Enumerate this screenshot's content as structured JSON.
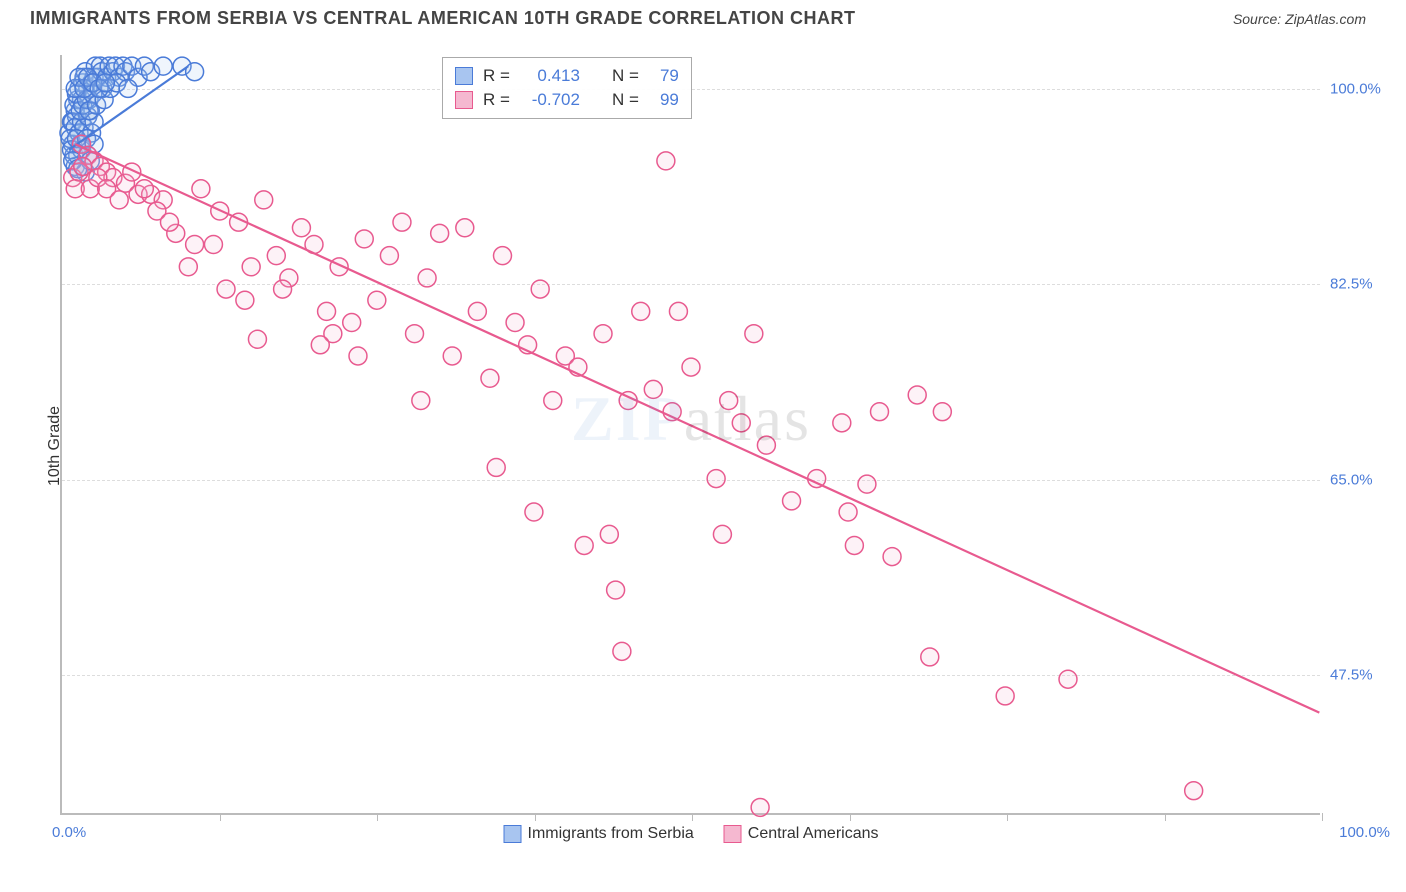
{
  "title": "IMMIGRANTS FROM SERBIA VS CENTRAL AMERICAN 10TH GRADE CORRELATION CHART",
  "source": "Source: ZipAtlas.com",
  "y_axis_label": "10th Grade",
  "watermark": "ZIPatlas",
  "chart": {
    "type": "scatter",
    "x_range": [
      0,
      100
    ],
    "y_range": [
      35,
      103
    ],
    "y_ticks": [
      47.5,
      65.0,
      82.5,
      100.0
    ],
    "y_tick_labels": [
      "47.5%",
      "65.0%",
      "82.5%",
      "100.0%"
    ],
    "x_min_label": "0.0%",
    "x_max_label": "100.0%",
    "x_tick_positions": [
      12.5,
      25,
      37.5,
      50,
      62.5,
      75,
      87.5,
      100
    ],
    "background_color": "#ffffff",
    "grid_color": "#dddddd",
    "axis_color": "#bbbbbb",
    "marker_radius": 9,
    "marker_stroke_width": 1.5,
    "marker_fill_opacity": 0.18,
    "trend_line_width": 2.2
  },
  "series": [
    {
      "name": "Immigrants from Serbia",
      "color_stroke": "#4a7bd8",
      "color_fill": "#a8c5f0",
      "r_value": "0.413",
      "n_value": "79",
      "trend": {
        "x1": 0.5,
        "y1": 94.5,
        "x2": 10,
        "y2": 102
      },
      "points": [
        [
          0.5,
          96
        ],
        [
          0.7,
          97
        ],
        [
          0.8,
          95
        ],
        [
          1.0,
          98
        ],
        [
          1.1,
          97.5
        ],
        [
          1.2,
          99
        ],
        [
          1.3,
          100
        ],
        [
          1.5,
          99
        ],
        [
          1.6,
          100.5
        ],
        [
          1.7,
          101
        ],
        [
          1.8,
          101.5
        ],
        [
          2.0,
          100
        ],
        [
          2.1,
          99
        ],
        [
          2.2,
          98
        ],
        [
          2.3,
          100.5
        ],
        [
          2.5,
          101
        ],
        [
          2.6,
          102
        ],
        [
          2.8,
          101
        ],
        [
          3.0,
          102
        ],
        [
          3.1,
          101.5
        ],
        [
          3.2,
          100
        ],
        [
          3.5,
          101
        ],
        [
          3.7,
          102
        ],
        [
          4.0,
          101.5
        ],
        [
          4.2,
          102
        ],
        [
          4.5,
          101
        ],
        [
          4.8,
          102
        ],
        [
          5.0,
          101.5
        ],
        [
          5.5,
          102
        ],
        [
          6.0,
          101
        ],
        [
          6.5,
          102
        ],
        [
          7.0,
          101.5
        ],
        [
          8.0,
          102
        ],
        [
          9.5,
          102
        ],
        [
          10.5,
          101.5
        ],
        [
          0.9,
          94
        ],
        [
          1.0,
          93
        ],
        [
          1.2,
          94
        ],
        [
          1.4,
          95
        ],
        [
          1.5,
          94.5
        ],
        [
          1.6,
          93
        ],
        [
          1.8,
          92.5
        ],
        [
          2.0,
          94
        ],
        [
          2.2,
          93.5
        ],
        [
          0.8,
          97
        ],
        [
          1.0,
          96.5
        ],
        [
          1.3,
          96
        ],
        [
          1.5,
          97
        ],
        [
          1.7,
          96.5
        ],
        [
          2.0,
          97.5
        ],
        [
          2.3,
          96
        ],
        [
          2.5,
          97
        ],
        [
          0.6,
          95.5
        ],
        [
          0.9,
          98.5
        ],
        [
          1.1,
          99.5
        ],
        [
          1.4,
          98
        ],
        [
          1.6,
          98.5
        ],
        [
          1.9,
          99
        ],
        [
          2.1,
          98
        ],
        [
          2.4,
          99.5
        ],
        [
          2.7,
          98.5
        ],
        [
          3.3,
          99
        ],
        [
          3.8,
          100
        ],
        [
          4.3,
          100.5
        ],
        [
          5.2,
          100
        ],
        [
          1.0,
          100
        ],
        [
          1.3,
          101
        ],
        [
          1.7,
          100
        ],
        [
          2.0,
          101
        ],
        [
          2.4,
          100.5
        ],
        [
          2.9,
          100
        ],
        [
          3.4,
          100.5
        ],
        [
          0.7,
          94.5
        ],
        [
          1.1,
          95.5
        ],
        [
          1.5,
          95
        ],
        [
          1.9,
          95.5
        ],
        [
          0.8,
          93.5
        ],
        [
          1.2,
          92.8
        ],
        [
          2.5,
          95
        ]
      ]
    },
    {
      "name": "Central Americans",
      "color_stroke": "#e85a8f",
      "color_fill": "#f5b8d0",
      "r_value": "-0.702",
      "n_value": "99",
      "trend": {
        "x1": 1,
        "y1": 95,
        "x2": 100,
        "y2": 44
      },
      "points": [
        [
          1.5,
          95
        ],
        [
          2.0,
          94
        ],
        [
          2.5,
          93.5
        ],
        [
          3.0,
          93
        ],
        [
          3.5,
          92.5
        ],
        [
          4.0,
          92
        ],
        [
          5.0,
          91.5
        ],
        [
          6.0,
          90.5
        ],
        [
          7.0,
          90.5
        ],
        [
          8.0,
          90
        ],
        [
          9.0,
          87
        ],
        [
          10.0,
          84
        ],
        [
          11.0,
          91
        ],
        [
          12.0,
          86
        ],
        [
          13.0,
          82
        ],
        [
          14.0,
          88
        ],
        [
          15.0,
          84
        ],
        [
          15.5,
          77.5
        ],
        [
          16.0,
          90
        ],
        [
          17.0,
          85
        ],
        [
          18.0,
          83
        ],
        [
          19.0,
          87.5
        ],
        [
          20.0,
          86
        ],
        [
          21.0,
          80
        ],
        [
          21.5,
          78
        ],
        [
          22.0,
          84
        ],
        [
          23.0,
          79
        ],
        [
          24.0,
          86.5
        ],
        [
          25.0,
          81
        ],
        [
          26.0,
          85
        ],
        [
          27.0,
          88
        ],
        [
          28.0,
          78
        ],
        [
          28.5,
          72
        ],
        [
          29.0,
          83
        ],
        [
          30.0,
          87
        ],
        [
          31.0,
          76
        ],
        [
          32.0,
          87.5
        ],
        [
          33.0,
          80
        ],
        [
          34.0,
          74
        ],
        [
          34.5,
          66
        ],
        [
          35.0,
          85
        ],
        [
          36.0,
          79
        ],
        [
          37.0,
          77
        ],
        [
          37.5,
          62
        ],
        [
          38.0,
          82
        ],
        [
          39.0,
          72
        ],
        [
          40.0,
          76
        ],
        [
          41.0,
          75
        ],
        [
          41.5,
          59
        ],
        [
          43.0,
          78
        ],
        [
          43.5,
          60
        ],
        [
          44.0,
          55
        ],
        [
          44.5,
          49.5
        ],
        [
          45.0,
          72
        ],
        [
          46.0,
          80
        ],
        [
          47.0,
          73
        ],
        [
          48.0,
          93.5
        ],
        [
          48.5,
          71
        ],
        [
          49.0,
          80
        ],
        [
          50.0,
          75
        ],
        [
          52.0,
          65
        ],
        [
          52.5,
          60
        ],
        [
          53.0,
          72
        ],
        [
          54.0,
          70
        ],
        [
          55.0,
          78
        ],
        [
          55.5,
          35.5
        ],
        [
          56.0,
          68
        ],
        [
          58.0,
          63
        ],
        [
          60.0,
          65
        ],
        [
          62.0,
          70
        ],
        [
          62.5,
          62
        ],
        [
          63.0,
          59
        ],
        [
          64.0,
          64.5
        ],
        [
          65.0,
          71
        ],
        [
          66.0,
          58
        ],
        [
          68.0,
          72.5
        ],
        [
          69.0,
          49
        ],
        [
          70.0,
          71
        ],
        [
          75.0,
          45.5
        ],
        [
          80.0,
          47
        ],
        [
          90.0,
          37
        ],
        [
          0.8,
          92
        ],
        [
          1.0,
          91
        ],
        [
          1.3,
          92.5
        ],
        [
          1.6,
          93
        ],
        [
          2.2,
          91
        ],
        [
          2.8,
          92
        ],
        [
          3.5,
          91
        ],
        [
          4.5,
          90
        ],
        [
          5.5,
          92.5
        ],
        [
          6.5,
          91
        ],
        [
          7.5,
          89
        ],
        [
          8.5,
          88
        ],
        [
          10.5,
          86
        ],
        [
          12.5,
          89
        ],
        [
          14.5,
          81
        ],
        [
          17.5,
          82
        ],
        [
          20.5,
          77
        ],
        [
          23.5,
          76
        ]
      ]
    }
  ],
  "legend": {
    "r_prefix": "R =",
    "n_prefix": "N ="
  }
}
